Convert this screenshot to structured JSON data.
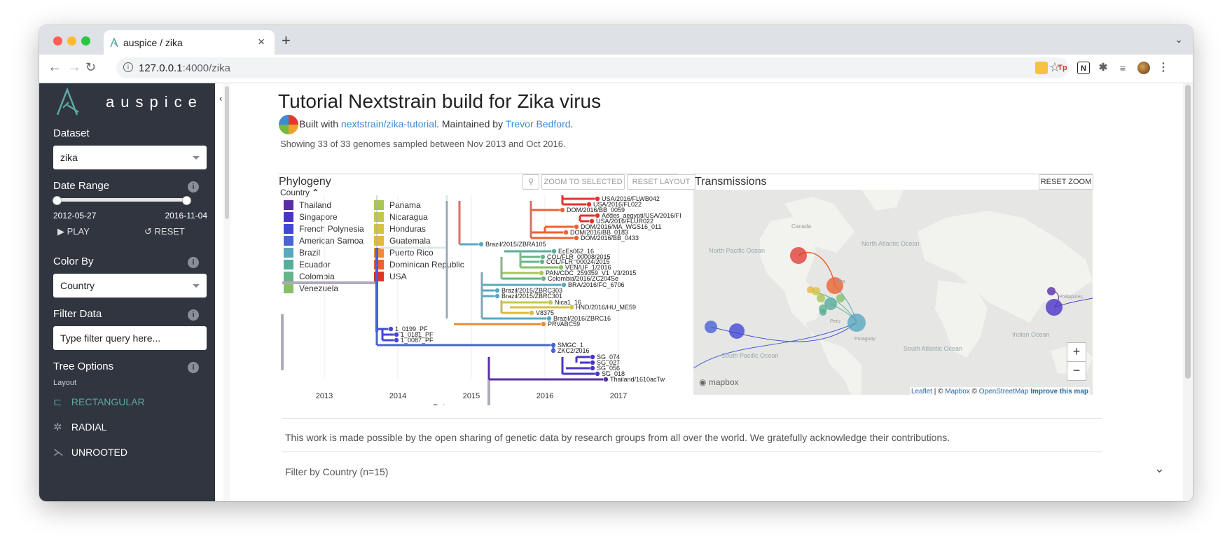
{
  "browser": {
    "tab_title": "auspice / zika",
    "tab_close": "×",
    "new_tab": "+",
    "url_host": "127.0.0.1",
    "url_rest": ":4000/zika"
  },
  "sidebar": {
    "logo_text": "auspice",
    "dataset_label": "Dataset",
    "dataset_value": "zika",
    "date_range_label": "Date Range",
    "date_start": "2012-05-27",
    "date_end": "2016-11-04",
    "play_label": "PLAY",
    "reset_label": "RESET",
    "color_by_label": "Color By",
    "color_by_value": "Country",
    "filter_label": "Filter Data",
    "filter_placeholder": "Type filter query here...",
    "tree_options_label": "Tree Options",
    "layout_label": "Layout",
    "layouts": [
      "RECTANGULAR",
      "RADIAL",
      "UNROOTED"
    ],
    "accent": "#5da8a3"
  },
  "main": {
    "title": "Tutorial Nextstrain build for Zika virus",
    "byline_prefix": "Built with",
    "byline_link1": "nextstrain/zika-tutorial",
    "byline_mid": ". Maintained by",
    "byline_link2": "Trevor Bedford",
    "byline_end": ".",
    "summary": "Showing 33 of 33 genomes sampled between Nov 2013 and Oct 2016.",
    "ack": "This work is made possible by the open sharing of genetic data by research groups from all over the world. We gratefully acknowledge their contributions.",
    "filter_country": "Filter by Country (n=15)"
  },
  "phylogeny": {
    "title": "Phylogeny",
    "zoom_selected": "ZOOM TO SELECTED",
    "reset_layout": "RESET LAYOUT",
    "legend_title": "Country",
    "legend": [
      {
        "label": "Thailand",
        "color": "#5a2ea6"
      },
      {
        "label": "Singapore",
        "color": "#4a34c8"
      },
      {
        "label": "French Polynesia",
        "color": "#4347d6"
      },
      {
        "label": "American Samoa",
        "color": "#4a63d4"
      },
      {
        "label": "Brazil",
        "color": "#5aa8c0"
      },
      {
        "label": "Ecuador",
        "color": "#56ad9c"
      },
      {
        "label": "Colombia",
        "color": "#66b488"
      },
      {
        "label": "Venezuela",
        "color": "#88c068"
      },
      {
        "label": "Panama",
        "color": "#a8c650"
      },
      {
        "label": "Nicaragua",
        "color": "#c2c948"
      },
      {
        "label": "Honduras",
        "color": "#d6c340"
      },
      {
        "label": "Guatemala",
        "color": "#e4b83c"
      },
      {
        "label": "Puerto Rico",
        "color": "#ee8c35"
      },
      {
        "label": "Dominican Republic",
        "color": "#ec6232"
      },
      {
        "label": "USA",
        "color": "#e2322b"
      }
    ],
    "axis_ticks": [
      "2013",
      "2014",
      "2015",
      "2016",
      "2017"
    ],
    "axis_label": "Date",
    "tips": [
      {
        "name": "USA/2016/FLWB042",
        "country": "USA"
      },
      {
        "name": "USA/2016/FL022",
        "country": "USA"
      },
      {
        "name": "DOM/2016/BB_0059",
        "country": "Dominican Republic"
      },
      {
        "name": "Aedes_aegypti/USA/2016/FI",
        "country": "USA"
      },
      {
        "name": "USA/2016/FLUR022",
        "country": "USA"
      },
      {
        "name": "DOM/2016/MA_WGS16_011",
        "country": "Dominican Republic"
      },
      {
        "name": "DOM/2016/BB_0183",
        "country": "Dominican Republic"
      },
      {
        "name": "DOM/2016/BB_0433",
        "country": "Dominican Republic"
      },
      {
        "name": "Brazil/2015/ZBRA105",
        "country": "Brazil"
      },
      {
        "name": "EcEs062_16",
        "country": "Ecuador"
      },
      {
        "name": "COL/FLR_00008/2015",
        "country": "Colombia"
      },
      {
        "name": "COL/FLR_00024/2015",
        "country": "Colombia"
      },
      {
        "name": "VEN/UF_1/2016",
        "country": "Venezuela"
      },
      {
        "name": "PAN/CDC_259359_V1_V3/2015",
        "country": "Panama"
      },
      {
        "name": "Colombia/2016/ZC204Se",
        "country": "Colombia"
      },
      {
        "name": "BRA/2016/FC_6706",
        "country": "Brazil"
      },
      {
        "name": "Brazil/2015/ZBRC303",
        "country": "Brazil"
      },
      {
        "name": "Brazil/2015/ZBRC301",
        "country": "Brazil"
      },
      {
        "name": "Nica1_16",
        "country": "Nicaragua"
      },
      {
        "name": "HND/2016/HU_ME59",
        "country": "Honduras"
      },
      {
        "name": "V8375",
        "country": "Guatemala"
      },
      {
        "name": "Brazil/2016/ZBRC16",
        "country": "Brazil"
      },
      {
        "name": "PRVABC59",
        "country": "Puerto Rico"
      },
      {
        "name": "1_0199_PF",
        "country": "French Polynesia"
      },
      {
        "name": "1_0181_PF",
        "country": "French Polynesia"
      },
      {
        "name": "1_0087_PF",
        "country": "French Polynesia"
      },
      {
        "name": "SMGC_1",
        "country": "American Samoa"
      },
      {
        "name": "ZKC2/2016",
        "country": "American Samoa"
      },
      {
        "name": "SG_074",
        "country": "Singapore"
      },
      {
        "name": "SG_027",
        "country": "Singapore"
      },
      {
        "name": "SG_056",
        "country": "Singapore"
      },
      {
        "name": "SG_018",
        "country": "Singapore"
      },
      {
        "name": "Thailand/1610acTw",
        "country": "Thailand"
      }
    ]
  },
  "transmissions": {
    "title": "Transmissions",
    "reset_zoom": "RESET ZOOM",
    "zoom_in": "+",
    "zoom_out": "−",
    "mapbox_logo": "mapbox",
    "attrib_leaflet": "Leaflet",
    "attrib_sep1": " | © ",
    "attrib_mapbox": "Mapbox",
    "attrib_sep2": " © ",
    "attrib_osm": "OpenStreetMap",
    "attrib_improve": "Improve this map",
    "ocean_labels": [
      "North Pacific Ocean",
      "North Atlantic Ocean",
      "South Pacific Ocean",
      "South Atlantic Ocean",
      "Indian Ocean"
    ],
    "land_labels": [
      "Canada",
      "Cuba",
      "Peru",
      "Paraguay",
      "Philippines"
    ]
  }
}
